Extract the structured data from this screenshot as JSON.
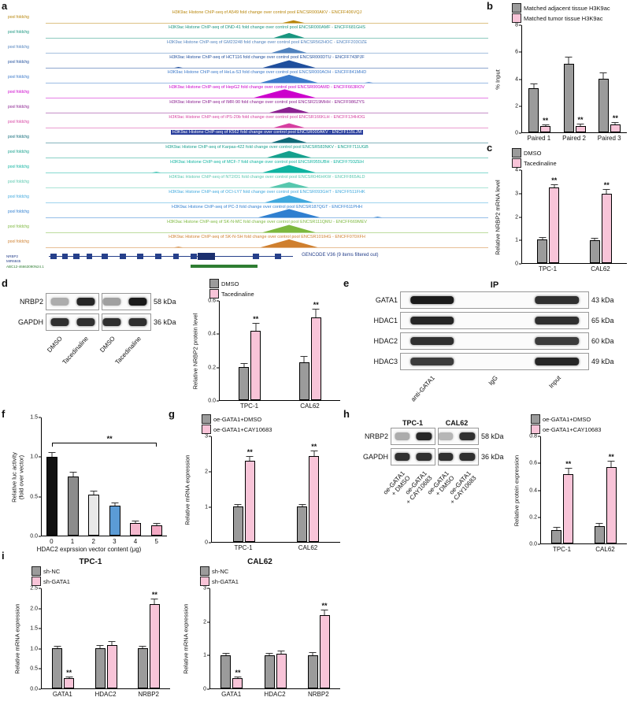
{
  "panels": {
    "a": "a",
    "b": "b",
    "c": "c",
    "d": "d",
    "e": "e",
    "f": "f",
    "g": "g",
    "h": "h",
    "i": "i"
  },
  "colors": {
    "gray_bar": "#9b9b9b",
    "pink_bar": "#f8c4d8",
    "axis": "#000000"
  },
  "genome_browser": {
    "track_label": "pool foldchg",
    "tracks": [
      {
        "color": "#b8860b",
        "title": "H3K9ac Histone ChIP-seq of A549 fold change over control pool ENCSR000AKV - ENCFF406VQJ",
        "peaks": [
          {
            "x": 0.56,
            "h": 0.3,
            "w": 0.05
          }
        ]
      },
      {
        "color": "#18957f",
        "title": "H3K9ac Histone ChIP-seq of DND-41 fold change over control pool ENCSR000AMF - ENCFF681GHS",
        "peaks": [
          {
            "x": 0.55,
            "h": 0.55,
            "w": 0.07
          }
        ]
      },
      {
        "color": "#4f81bd",
        "title": "H3K9ac Histone ChIP-seq of GM23248 fold change over control pool ENCSR562HOC - ENCFF203OZE",
        "peaks": [
          {
            "x": 0.55,
            "h": 0.6,
            "w": 0.08
          }
        ]
      },
      {
        "color": "#1f4e9c",
        "title": "H3K9ac Histone ChIP-seq of HCT116 fold change over control pool ENCSR000DTU - ENCFF743PJF",
        "peaks": [
          {
            "x": 0.55,
            "h": 0.85,
            "w": 0.12
          },
          {
            "x": 0.3,
            "h": 0.1,
            "w": 0.02
          }
        ]
      },
      {
        "color": "#3a78c9",
        "title": "H3K9ac Histone ChIP-seq of HeLa-S3 fold change over control pool ENCSR000AOH - ENCFF841MHD",
        "peaks": [
          {
            "x": 0.55,
            "h": 0.9,
            "w": 0.13
          },
          {
            "x": 0.73,
            "h": 0.08,
            "w": 0.02
          }
        ]
      },
      {
        "color": "#cc00cc",
        "title": "H3K9ac Histone ChIP-seq of HepG2 fold change over control pool ENCSR000AMD - ENCFF663ROV",
        "peaks": [
          {
            "x": 0.54,
            "h": 0.95,
            "w": 0.14
          }
        ]
      },
      {
        "color": "#8b2090",
        "title": "H3K9ac Histone ChIP-seq of IMR-90 fold change over control pool ENCSR219MHH - ENCFF986ZYS",
        "peaks": [
          {
            "x": 0.55,
            "h": 0.65,
            "w": 0.09
          }
        ]
      },
      {
        "color": "#d63fa0",
        "title": "H3K9ac Histone ChIP-seq of iPS-20b fold change over control pool ENCSR166KLH - ENCFF134HOG",
        "peaks": [
          {
            "x": 0.55,
            "h": 0.5,
            "w": 0.07
          }
        ]
      },
      {
        "color": "#0e6978",
        "title": "H3K9ac Histone ChIP-seq of K562 fold change over control pool ENCSR000AKV - ENCFF115LJM",
        "highlight": true,
        "peaks": [
          {
            "x": 0.55,
            "h": 0.6,
            "w": 0.08
          }
        ]
      },
      {
        "color": "#15a08d",
        "title": "H3K9ac Histone ChIP-seq of Karpas-422 fold change over control pool ENCSR583NKV - ENCFF711UGB",
        "peaks": [
          {
            "x": 0.55,
            "h": 0.75,
            "w": 0.1
          }
        ]
      },
      {
        "color": "#0fb3a0",
        "title": "H3K9ac Histone ChIP-seq of MCF-7 fold change over control pool ENCSR955UBH - ENCFF793ZEH",
        "peaks": [
          {
            "x": 0.55,
            "h": 0.85,
            "w": 0.12
          },
          {
            "x": 0.25,
            "h": 0.08,
            "w": 0.02
          }
        ]
      },
      {
        "color": "#57c7ae",
        "title": "H3K9ac Histone ChIP-seq of NT2/D1 fold change over control pool ENCSR046HKW - ENCFF865ALD",
        "peaks": [
          {
            "x": 0.55,
            "h": 0.6,
            "w": 0.09
          }
        ]
      },
      {
        "color": "#3fa8dd",
        "title": "H3K9ac Histone ChIP-seq of OCI-LY7 fold change over control pool ENCSR093GHT - ENCFF511FHK",
        "peaks": [
          {
            "x": 0.55,
            "h": 0.8,
            "w": 0.11
          }
        ]
      },
      {
        "color": "#2f7fd0",
        "title": "H3K9ac Histone ChIP-seq of PC-3 fold change over control pool ENCSR187QGT - ENCFF611PHH",
        "peaks": [
          {
            "x": 0.55,
            "h": 0.95,
            "w": 0.14
          },
          {
            "x": 0.75,
            "h": 0.09,
            "w": 0.02
          }
        ]
      },
      {
        "color": "#7cb83e",
        "title": "H3K9ac Histone ChIP-seq of SK-N-MC fold change over control pool ENCSR111QMU - ENCFF669MEV",
        "peaks": [
          {
            "x": 0.55,
            "h": 0.85,
            "w": 0.12
          }
        ]
      },
      {
        "color": "#cf7f2e",
        "title": "H3K9ac Histone ChIP-seq of SK-N-SH fold change over control pool ENCSR101IHG - ENCFF070XFH",
        "peaks": [
          {
            "x": 0.55,
            "h": 0.9,
            "w": 0.13
          },
          {
            "x": 0.3,
            "h": 0.08,
            "w": 0.02
          }
        ]
      }
    ],
    "gene_track": {
      "labels": [
        "NRBP2",
        "MIR6845",
        "ABC12-46663090N24.1"
      ],
      "annotation": "GENCODE V36 (9 items filtered out)"
    }
  },
  "blots": {
    "d": {
      "split": true,
      "labW": 46,
      "kdaW": 42,
      "label_h": 66,
      "rows": [
        {
          "label": "NRBP2",
          "kda": "58 kDa",
          "bands": [
            0.35,
            0.95,
            0.4,
            1.0
          ]
        },
        {
          "label": "GAPDH",
          "kda": "36 kDa",
          "bands": [
            0.9,
            0.9,
            0.9,
            0.9
          ]
        }
      ],
      "lane_labels": [
        "DMSO",
        "Tacedinaline",
        "DMSO",
        "Tacedinaline"
      ]
    },
    "e": {
      "header": "IP",
      "labW": 56,
      "kdaW": 44,
      "label_h": 56,
      "rows": [
        {
          "label": "GATA1",
          "kda": "43 kDa",
          "bands": [
            1,
            0,
            0.9
          ]
        },
        {
          "label": "HDAC1",
          "kda": "65 kDa",
          "bands": [
            0.95,
            0,
            0.9
          ]
        },
        {
          "label": "HDAC2",
          "kda": "60 kDa",
          "bands": [
            0.9,
            0,
            0.85
          ]
        },
        {
          "label": "HDAC3",
          "kda": "49 kDa",
          "bands": [
            0.85,
            0,
            0.95
          ]
        }
      ],
      "lane_labels": [
        "anti-GATA1",
        "IgG",
        "Input"
      ]
    },
    "h": {
      "split": true,
      "labW": 44,
      "kdaW": 40,
      "label_h": 84,
      "group_labels": [
        "TPC-1",
        "CAL62"
      ],
      "rows": [
        {
          "label": "NRBP2",
          "kda": "58 kDa",
          "bands": [
            0.35,
            0.95,
            0.3,
            0.9
          ]
        },
        {
          "label": "GAPDH",
          "kda": "36 kDa",
          "bands": [
            0.9,
            0.9,
            0.9,
            0.9
          ]
        }
      ],
      "lane_labels": [
        "oe-GATA1\n+ DMSO",
        "oe-GATA1\n+ CAY10683",
        "oe-GATA1\n+ DMSO",
        "oe-GATA1\n+ CAY10683"
      ]
    }
  },
  "chart_data": [
    {
      "id": "chart-b",
      "type": "bar",
      "ylabel": "% Input",
      "ylim": [
        0,
        8
      ],
      "yticks": [
        "0",
        "2",
        "4",
        "6",
        "8"
      ],
      "categories": [
        "Paired 1",
        "Paired 2",
        "Paired 3"
      ],
      "series": [
        {
          "name": "Matched adjacent tissue H3K9ac",
          "color": "#9b9b9b",
          "values": [
            3.3,
            5.1,
            4.0
          ],
          "errors": [
            0.3,
            0.5,
            0.4
          ]
        },
        {
          "name": "Matched tumor tissue H3K9ac",
          "color": "#f8c4d8",
          "values": [
            0.45,
            0.5,
            0.6
          ],
          "errors": [
            0.08,
            0.08,
            0.1
          ],
          "sig": [
            "**",
            "**",
            "**"
          ]
        }
      ]
    },
    {
      "id": "chart-c",
      "type": "bar",
      "ylabel": "Relative NRBP2 mRNA level",
      "ylim": [
        0,
        4
      ],
      "yticks": [
        "0",
        "1",
        "2",
        "3",
        "4"
      ],
      "categories": [
        "TPC-1",
        "CAL62"
      ],
      "series": [
        {
          "name": "DMSO",
          "color": "#9b9b9b",
          "values": [
            1.02,
            1.0
          ],
          "errors": [
            0.05,
            0.05
          ]
        },
        {
          "name": "Tacedinaline",
          "color": "#f8c4d8",
          "values": [
            3.25,
            3.0
          ],
          "errors": [
            0.12,
            0.15
          ],
          "sig": [
            "**",
            "**"
          ]
        }
      ]
    },
    {
      "id": "chart-d",
      "type": "bar",
      "ylabel": "Relative NRBP2 protein level",
      "ylim": [
        0,
        0.6
      ],
      "yticks": [
        "0.0",
        "0.2",
        "0.4",
        "0.6"
      ],
      "categories": [
        "TPC-1",
        "CAL62"
      ],
      "series": [
        {
          "name": "DMSO",
          "color": "#9b9b9b",
          "values": [
            0.2,
            0.23
          ],
          "errors": [
            0.02,
            0.03
          ]
        },
        {
          "name": "Tacedinaline",
          "color": "#f8c4d8",
          "values": [
            0.42,
            0.5
          ],
          "errors": [
            0.04,
            0.05
          ],
          "sig": [
            "**",
            "**"
          ]
        }
      ]
    },
    {
      "id": "chart-f",
      "type": "bar",
      "ylabel": "Relative luc activity\n(fold over vector)",
      "xlabel": "HDAC2 exprssion vector content (μg)",
      "ylim": [
        0,
        1.5
      ],
      "yticks": [
        "0.0",
        "0.5",
        "1.0",
        "1.5"
      ],
      "categories": [
        "0",
        "1",
        "2",
        "3",
        "4",
        "5"
      ],
      "series": [
        {
          "colors": [
            "#111111",
            "#8c8c8c",
            "#e8e8e8",
            "#5b9bd5",
            "#f4b8ce",
            "#f4a9c4"
          ],
          "values": [
            1.0,
            0.75,
            0.52,
            0.38,
            0.16,
            0.13
          ],
          "errors": [
            0.05,
            0.05,
            0.04,
            0.03,
            0.02,
            0.02
          ]
        }
      ],
      "bracket": {
        "y": 1.12,
        "label": "**"
      }
    },
    {
      "id": "chart-g",
      "type": "bar",
      "ylabel": "Relative mRNA expression",
      "ylim": [
        0,
        3
      ],
      "yticks": [
        "0",
        "1",
        "2",
        "3"
      ],
      "categories": [
        "TPC-1",
        "CAL62"
      ],
      "series": [
        {
          "name": "oe-GATA1+DMSO",
          "color": "#9b9b9b",
          "values": [
            1.0,
            1.0
          ],
          "errors": [
            0.05,
            0.05
          ]
        },
        {
          "name": "oe-GATA1+CAY10683",
          "color": "#f8c4d8",
          "values": [
            2.3,
            2.45
          ],
          "errors": [
            0.12,
            0.12
          ],
          "sig": [
            "**",
            "**"
          ]
        }
      ]
    },
    {
      "id": "chart-h",
      "type": "bar",
      "ylabel": "Relative protein expression",
      "ylim": [
        0,
        0.8
      ],
      "yticks": [
        "0.0",
        "0.2",
        "0.4",
        "0.6",
        "0.8"
      ],
      "categories": [
        "TPC-1",
        "CAL62"
      ],
      "series": [
        {
          "name": "oe-GATA1+DMSO",
          "color": "#9b9b9b",
          "values": [
            0.1,
            0.13
          ],
          "errors": [
            0.02,
            0.02
          ]
        },
        {
          "name": "oe-GATA1+CAY10683",
          "color": "#f8c4d8",
          "values": [
            0.52,
            0.57
          ],
          "errors": [
            0.04,
            0.04
          ],
          "sig": [
            "**",
            "**"
          ]
        }
      ]
    },
    {
      "id": "chart-i1",
      "type": "bar",
      "title": "TPC-1",
      "ylabel": "Relative mRNA expression",
      "ylim": [
        0,
        2.5
      ],
      "yticks": [
        "0.0",
        "0.5",
        "1.0",
        "1.5",
        "2.0",
        "2.5"
      ],
      "categories": [
        "GATA1",
        "HDAC2",
        "NRBP2"
      ],
      "series": [
        {
          "name": "sh-NC",
          "color": "#9b9b9b",
          "values": [
            1.0,
            1.0,
            1.0
          ],
          "errors": [
            0.05,
            0.06,
            0.05
          ]
        },
        {
          "name": "sh-GATA1",
          "color": "#f8c4d8",
          "values": [
            0.25,
            1.08,
            2.1
          ],
          "errors": [
            0.03,
            0.08,
            0.12
          ],
          "sig": [
            "**",
            "",
            "**"
          ]
        }
      ]
    },
    {
      "id": "chart-i2",
      "type": "bar",
      "title": "CAL62",
      "ylabel": "Relative mRNA expression",
      "ylim": [
        0,
        3
      ],
      "yticks": [
        "0",
        "1",
        "2",
        "3"
      ],
      "categories": [
        "GATA1",
        "HDAC2",
        "NRBP2"
      ],
      "series": [
        {
          "name": "sh-NC",
          "color": "#9b9b9b",
          "values": [
            1.0,
            1.0,
            1.0
          ],
          "errors": [
            0.05,
            0.05,
            0.06
          ]
        },
        {
          "name": "sh-GATA1",
          "color": "#f8c4d8",
          "values": [
            0.3,
            1.05,
            2.2
          ],
          "errors": [
            0.04,
            0.06,
            0.15
          ],
          "sig": [
            "**",
            "",
            "**"
          ]
        }
      ]
    }
  ]
}
